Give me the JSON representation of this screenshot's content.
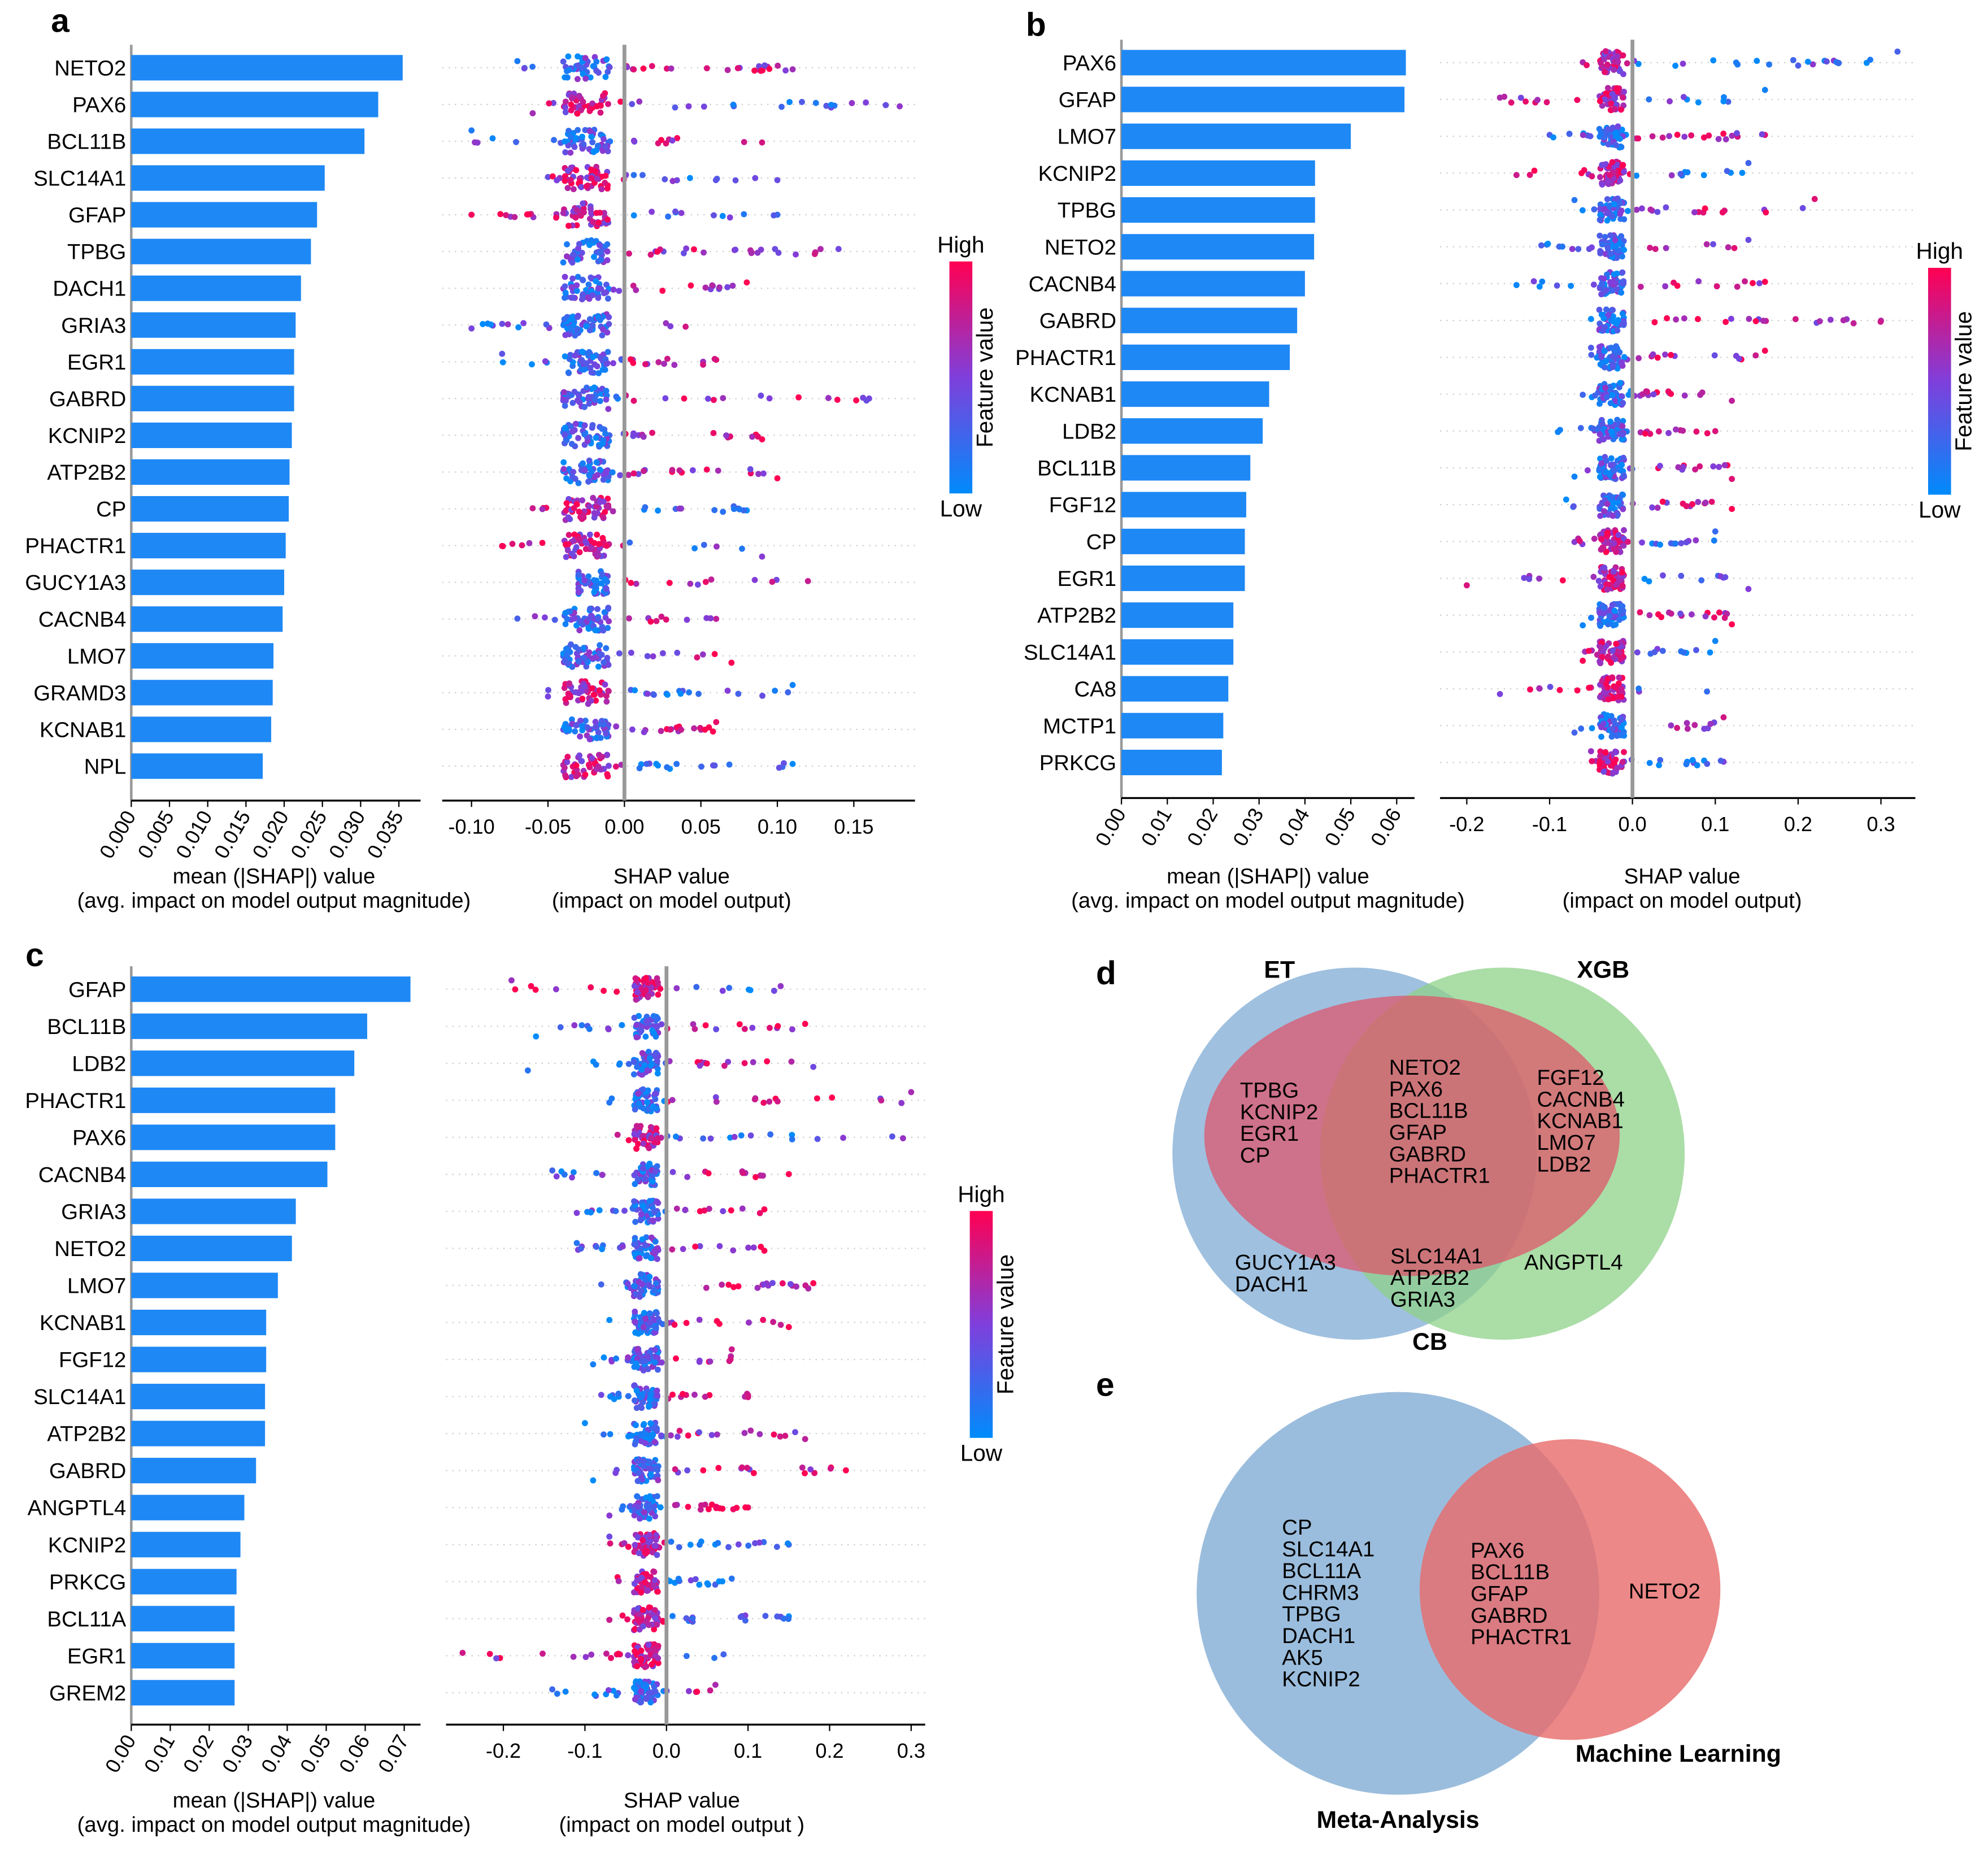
{
  "colors": {
    "bar": "#1e88f5",
    "high": "#ff0052",
    "low": "#008bfb",
    "mid": "#8a2be2"
  },
  "colorbar": {
    "high": "High",
    "low": "Low",
    "label": "Feature value"
  },
  "chart_data": [
    {
      "panel": "a",
      "type": "bar",
      "xlabel": "mean (|SHAP|) value",
      "xlabel2": "(avg. impact on model output magnitude)",
      "xticks": [
        "0.000",
        "0.005",
        "0.010",
        "0.015",
        "0.020",
        "0.025",
        "0.030",
        "0.035"
      ],
      "tick_values": [
        0,
        0.005,
        0.01,
        0.015,
        0.02,
        0.025,
        0.03,
        0.035
      ],
      "beeswarm": {
        "type": "scatter",
        "xlabel": "SHAP value",
        "xlabel2": "(impact on model output)",
        "xticks": [
          "-0.10",
          "-0.05",
          "0.00",
          "0.05",
          "0.10",
          "0.15"
        ],
        "tick_values": [
          -0.1,
          -0.05,
          0,
          0.05,
          0.1,
          0.15
        ],
        "xlim": [
          -0.12,
          0.19
        ]
      },
      "features": [
        {
          "name": "NETO2",
          "value": 0.0355,
          "shap_min": -0.07,
          "shap_max": 0.11,
          "high_side": "+"
        },
        {
          "name": "PAX6",
          "value": 0.0323,
          "shap_min": -0.06,
          "shap_max": 0.18,
          "high_side": "-"
        },
        {
          "name": "BCL11B",
          "value": 0.0305,
          "shap_min": -0.1,
          "shap_max": 0.09,
          "high_side": "+"
        },
        {
          "name": "SLC14A1",
          "value": 0.0253,
          "shap_min": -0.05,
          "shap_max": 0.1,
          "high_side": "-"
        },
        {
          "name": "GFAP",
          "value": 0.0243,
          "shap_min": -0.1,
          "shap_max": 0.1,
          "high_side": "-"
        },
        {
          "name": "TPBG",
          "value": 0.0235,
          "shap_min": -0.04,
          "shap_max": 0.14,
          "high_side": "+"
        },
        {
          "name": "DACH1",
          "value": 0.0222,
          "shap_min": -0.04,
          "shap_max": 0.08,
          "high_side": "+"
        },
        {
          "name": "GRIA3",
          "value": 0.0215,
          "shap_min": -0.1,
          "shap_max": 0.04,
          "high_side": "+"
        },
        {
          "name": "EGR1",
          "value": 0.0213,
          "shap_min": -0.08,
          "shap_max": 0.06,
          "high_side": "+"
        },
        {
          "name": "GABRD",
          "value": 0.0213,
          "shap_min": -0.04,
          "shap_max": 0.16,
          "high_side": "+"
        },
        {
          "name": "KCNIP2",
          "value": 0.021,
          "shap_min": -0.04,
          "shap_max": 0.09,
          "high_side": "+"
        },
        {
          "name": "ATP2B2",
          "value": 0.0207,
          "shap_min": -0.04,
          "shap_max": 0.1,
          "high_side": "+"
        },
        {
          "name": "CP",
          "value": 0.0206,
          "shap_min": -0.06,
          "shap_max": 0.08,
          "high_side": "-"
        },
        {
          "name": "PHACTR1",
          "value": 0.0202,
          "shap_min": -0.08,
          "shap_max": 0.09,
          "high_side": "-"
        },
        {
          "name": "GUCY1A3",
          "value": 0.02,
          "shap_min": -0.03,
          "shap_max": 0.12,
          "high_side": "+"
        },
        {
          "name": "CACNB4",
          "value": 0.0198,
          "shap_min": -0.07,
          "shap_max": 0.06,
          "high_side": "+"
        },
        {
          "name": "LMO7",
          "value": 0.0186,
          "shap_min": -0.04,
          "shap_max": 0.07,
          "high_side": "+"
        },
        {
          "name": "GRAMD3",
          "value": 0.0185,
          "shap_min": -0.05,
          "shap_max": 0.11,
          "high_side": "-"
        },
        {
          "name": "KCNAB1",
          "value": 0.0183,
          "shap_min": -0.04,
          "shap_max": 0.06,
          "high_side": "+"
        },
        {
          "name": "NPL",
          "value": 0.0172,
          "shap_min": -0.04,
          "shap_max": 0.11,
          "high_side": "-"
        }
      ]
    },
    {
      "panel": "b",
      "type": "bar",
      "xlabel": "mean (|SHAP|) value",
      "xlabel2": "(avg. impact on model output magnitude)",
      "xticks": [
        "0.00",
        "0.01",
        "0.02",
        "0.03",
        "0.04",
        "0.05",
        "0.06"
      ],
      "tick_values": [
        0,
        0.01,
        0.02,
        0.03,
        0.04,
        0.05,
        0.06
      ],
      "beeswarm": {
        "type": "scatter",
        "xlabel": "SHAP value",
        "xlabel2": "(impact on model output)",
        "xticks": [
          "-0.2",
          "-0.1",
          "0.0",
          "0.1",
          "0.2",
          "0.3"
        ],
        "tick_values": [
          -0.2,
          -0.1,
          0,
          0.1,
          0.2,
          0.3
        ],
        "xlim": [
          -0.23,
          0.35
        ]
      },
      "features": [
        {
          "name": "PAX6",
          "value": 0.062,
          "shap_min": -0.06,
          "shap_max": 0.32,
          "high_side": "-"
        },
        {
          "name": "GFAP",
          "value": 0.0617,
          "shap_min": -0.16,
          "shap_max": 0.16,
          "high_side": "-"
        },
        {
          "name": "LMO7",
          "value": 0.05,
          "shap_min": -0.1,
          "shap_max": 0.16,
          "high_side": "+"
        },
        {
          "name": "KCNIP2",
          "value": 0.0422,
          "shap_min": -0.14,
          "shap_max": 0.14,
          "high_side": "-"
        },
        {
          "name": "TPBG",
          "value": 0.0422,
          "shap_min": -0.07,
          "shap_max": 0.22,
          "high_side": "+"
        },
        {
          "name": "NETO2",
          "value": 0.042,
          "shap_min": -0.11,
          "shap_max": 0.14,
          "high_side": "+"
        },
        {
          "name": "CACNB4",
          "value": 0.04,
          "shap_min": -0.14,
          "shap_max": 0.16,
          "high_side": "+"
        },
        {
          "name": "GABRD",
          "value": 0.0383,
          "shap_min": -0.05,
          "shap_max": 0.3,
          "high_side": "+"
        },
        {
          "name": "PHACTR1",
          "value": 0.0367,
          "shap_min": -0.05,
          "shap_max": 0.16,
          "high_side": "+"
        },
        {
          "name": "KCNAB1",
          "value": 0.0322,
          "shap_min": -0.06,
          "shap_max": 0.12,
          "high_side": "+"
        },
        {
          "name": "LDB2",
          "value": 0.0308,
          "shap_min": -0.09,
          "shap_max": 0.1,
          "high_side": "+"
        },
        {
          "name": "BCL11B",
          "value": 0.0281,
          "shap_min": -0.07,
          "shap_max": 0.12,
          "high_side": "+"
        },
        {
          "name": "FGF12",
          "value": 0.0272,
          "shap_min": -0.08,
          "shap_max": 0.12,
          "high_side": "+"
        },
        {
          "name": "CP",
          "value": 0.0269,
          "shap_min": -0.07,
          "shap_max": 0.1,
          "high_side": "-"
        },
        {
          "name": "EGR1",
          "value": 0.0269,
          "shap_min": -0.2,
          "shap_max": 0.14,
          "high_side": "-"
        },
        {
          "name": "ATP2B2",
          "value": 0.0244,
          "shap_min": -0.06,
          "shap_max": 0.12,
          "high_side": "+"
        },
        {
          "name": "SLC14A1",
          "value": 0.0244,
          "shap_min": -0.06,
          "shap_max": 0.1,
          "high_side": "-"
        },
        {
          "name": "CA8",
          "value": 0.0233,
          "shap_min": -0.16,
          "shap_max": 0.09,
          "high_side": "-"
        },
        {
          "name": "MCTP1",
          "value": 0.0222,
          "shap_min": -0.07,
          "shap_max": 0.11,
          "high_side": "+"
        },
        {
          "name": "PRKCG",
          "value": 0.0219,
          "shap_min": -0.05,
          "shap_max": 0.11,
          "high_side": "-"
        }
      ]
    },
    {
      "panel": "c",
      "type": "bar",
      "xlabel": "mean (|SHAP|) value",
      "xlabel2": "(avg. impact on model output magnitude)",
      "xticks": [
        "0.00",
        "0.01",
        "0.02",
        "0.03",
        "0.04",
        "0.05",
        "0.06",
        "0.07"
      ],
      "tick_values": [
        0,
        0.01,
        0.02,
        0.03,
        0.04,
        0.05,
        0.06,
        0.07
      ],
      "beeswarm": {
        "type": "scatter",
        "xlabel": "SHAP value",
        "xlabel2": "(impact on model output )",
        "xticks": [
          "-0.2",
          "-0.1",
          "0.0",
          "0.1",
          "0.2",
          "0.3"
        ],
        "tick_values": [
          -0.2,
          -0.1,
          0,
          0.1,
          0.2,
          0.3
        ],
        "xlim": [
          -0.27,
          0.32
        ]
      },
      "features": [
        {
          "name": "GFAP",
          "value": 0.0716,
          "shap_min": -0.19,
          "shap_max": 0.14,
          "high_side": "-"
        },
        {
          "name": "BCL11B",
          "value": 0.0605,
          "shap_min": -0.16,
          "shap_max": 0.17,
          "high_side": "+"
        },
        {
          "name": "LDB2",
          "value": 0.0572,
          "shap_min": -0.17,
          "shap_max": 0.18,
          "high_side": "+"
        },
        {
          "name": "PHACTR1",
          "value": 0.0523,
          "shap_min": -0.07,
          "shap_max": 0.3,
          "high_side": "+"
        },
        {
          "name": "PAX6",
          "value": 0.0523,
          "shap_min": -0.06,
          "shap_max": 0.29,
          "high_side": "-"
        },
        {
          "name": "CACNB4",
          "value": 0.0503,
          "shap_min": -0.14,
          "shap_max": 0.15,
          "high_side": "+"
        },
        {
          "name": "GRIA3",
          "value": 0.0422,
          "shap_min": -0.11,
          "shap_max": 0.12,
          "high_side": "+"
        },
        {
          "name": "NETO2",
          "value": 0.0412,
          "shap_min": -0.11,
          "shap_max": 0.12,
          "high_side": "+"
        },
        {
          "name": "LMO7",
          "value": 0.0376,
          "shap_min": -0.08,
          "shap_max": 0.18,
          "high_side": "+"
        },
        {
          "name": "KCNAB1",
          "value": 0.0346,
          "shap_min": -0.07,
          "shap_max": 0.15,
          "high_side": "+"
        },
        {
          "name": "FGF12",
          "value": 0.0346,
          "shap_min": -0.09,
          "shap_max": 0.08,
          "high_side": "+"
        },
        {
          "name": "SLC14A1",
          "value": 0.0343,
          "shap_min": -0.08,
          "shap_max": 0.1,
          "high_side": "+"
        },
        {
          "name": "ATP2B2",
          "value": 0.0343,
          "shap_min": -0.1,
          "shap_max": 0.17,
          "high_side": "+"
        },
        {
          "name": "GABRD",
          "value": 0.032,
          "shap_min": -0.09,
          "shap_max": 0.22,
          "high_side": "+"
        },
        {
          "name": "ANGPTL4",
          "value": 0.029,
          "shap_min": -0.07,
          "shap_max": 0.1,
          "high_side": "+"
        },
        {
          "name": "KCNIP2",
          "value": 0.028,
          "shap_min": -0.07,
          "shap_max": 0.15,
          "high_side": "-"
        },
        {
          "name": "PRKCG",
          "value": 0.027,
          "shap_min": -0.06,
          "shap_max": 0.08,
          "high_side": "-"
        },
        {
          "name": "BCL11A",
          "value": 0.0265,
          "shap_min": -0.07,
          "shap_max": 0.15,
          "high_side": "-"
        },
        {
          "name": "EGR1",
          "value": 0.0265,
          "shap_min": -0.25,
          "shap_max": 0.07,
          "high_side": "-"
        },
        {
          "name": "GREM2",
          "value": 0.0265,
          "shap_min": -0.14,
          "shap_max": 0.06,
          "high_side": "+"
        }
      ]
    }
  ],
  "venn_d": {
    "letter": "d",
    "sets": {
      "et": "ET",
      "xgb": "XGB",
      "cb": "CB"
    },
    "colors": {
      "et": "#7fabd4",
      "xgb": "#8fd18a",
      "cb": "#e0526a"
    },
    "et_cb": [
      "TPBG",
      "KCNIP2",
      "EGR1",
      "CP"
    ],
    "all": [
      "NETO2",
      "PAX6",
      "BCL11B",
      "GFAP",
      "GABRD",
      "PHACTR1"
    ],
    "xgb_cb": [
      "FGF12",
      "CACNB4",
      "KCNAB1",
      "LMO7",
      "LDB2"
    ],
    "et_only": [
      "GUCY1A3",
      "DACH1"
    ],
    "et_xgb": [
      "SLC14A1",
      "ATP2B2",
      "GRIA3"
    ],
    "xgb_only": [
      "ANGPTL4"
    ]
  },
  "venn_e": {
    "letter": "e",
    "sets": {
      "meta": "Meta-Analysis",
      "ml": "Machine Learning"
    },
    "colors": {
      "meta": "#7fabd4",
      "ml": "#e86a6a"
    },
    "meta_only": [
      "CP",
      "SLC14A1",
      "BCL11A",
      "CHRM3",
      "TPBG",
      "DACH1",
      "AK5",
      "KCNIP2"
    ],
    "both": [
      "PAX6",
      "BCL11B",
      "GFAP",
      "GABRD",
      "PHACTR1"
    ],
    "ml_only": [
      "NETO2"
    ]
  },
  "panel_letters": [
    "a",
    "b",
    "c"
  ]
}
